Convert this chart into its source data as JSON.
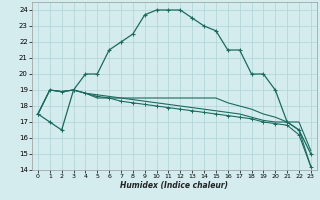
{
  "title": "",
  "xlabel": "Humidex (Indice chaleur)",
  "ylabel": "",
  "bg_color": "#d4ecee",
  "grid_color": "#afd4d8",
  "line_color": "#1a6b5e",
  "xlim": [
    -0.5,
    23.5
  ],
  "ylim": [
    14,
    24.5
  ],
  "yticks": [
    14,
    15,
    16,
    17,
    18,
    19,
    20,
    21,
    22,
    23,
    24
  ],
  "xticks": [
    0,
    1,
    2,
    3,
    4,
    5,
    6,
    7,
    8,
    9,
    10,
    11,
    12,
    13,
    14,
    15,
    16,
    17,
    18,
    19,
    20,
    21,
    22,
    23
  ],
  "series": [
    [
      17.5,
      17.0,
      16.5,
      19.0,
      20.0,
      20.0,
      21.5,
      22.0,
      22.5,
      23.7,
      24.0,
      24.0,
      24.0,
      23.5,
      23.0,
      22.7,
      21.5,
      21.5,
      20.0,
      20.0,
      19.0,
      17.0,
      16.5,
      15.0
    ],
    [
      17.5,
      19.0,
      18.9,
      19.0,
      18.8,
      18.5,
      18.5,
      18.5,
      18.5,
      18.5,
      18.5,
      18.5,
      18.5,
      18.5,
      18.5,
      18.5,
      18.2,
      18.0,
      17.8,
      17.5,
      17.3,
      17.0,
      17.0,
      15.2
    ],
    [
      17.5,
      19.0,
      18.9,
      19.0,
      18.8,
      18.6,
      18.5,
      18.3,
      18.2,
      18.1,
      18.0,
      17.9,
      17.8,
      17.7,
      17.6,
      17.5,
      17.4,
      17.3,
      17.2,
      17.0,
      16.9,
      16.8,
      16.2,
      14.2
    ],
    [
      17.5,
      19.0,
      18.9,
      19.0,
      18.8,
      18.7,
      18.6,
      18.5,
      18.4,
      18.3,
      18.2,
      18.1,
      18.0,
      17.9,
      17.8,
      17.7,
      17.6,
      17.5,
      17.3,
      17.1,
      17.0,
      17.0,
      16.5,
      14.2
    ]
  ],
  "markers_on": [
    0,
    2
  ]
}
